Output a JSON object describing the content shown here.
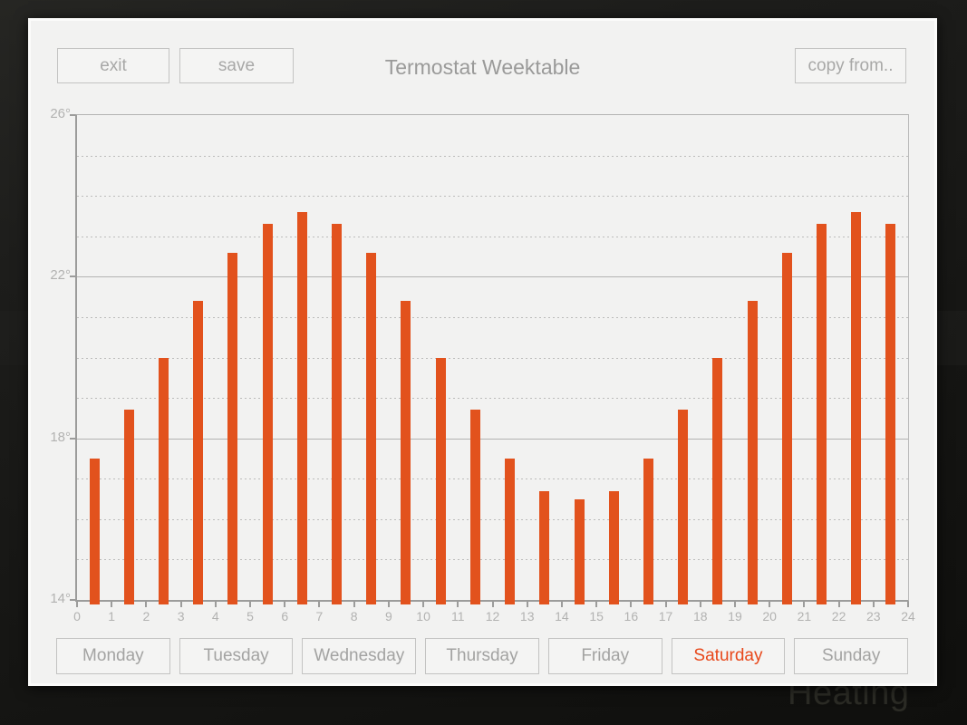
{
  "window": {
    "background_watermark": "Heating"
  },
  "header": {
    "title": "Termostat Weektable",
    "exit_label": "exit",
    "save_label": "save",
    "copy_from_label": "copy from.."
  },
  "days": {
    "selected": "Saturday",
    "items": [
      "Monday",
      "Tuesday",
      "Wednesday",
      "Thursday",
      "Friday",
      "Saturday",
      "Sunday"
    ]
  },
  "chart_data": {
    "type": "bar",
    "title": "Termostat Weektable",
    "xlabel": "",
    "ylabel": "",
    "unit": "°",
    "categories": [
      0,
      1,
      2,
      3,
      4,
      5,
      6,
      7,
      8,
      9,
      10,
      11,
      12,
      13,
      14,
      15,
      16,
      17,
      18,
      19,
      20,
      21,
      22,
      23
    ],
    "values": [
      17.5,
      18.7,
      20.0,
      21.4,
      22.6,
      23.3,
      23.6,
      23.3,
      22.6,
      21.4,
      20.0,
      18.7,
      17.5,
      16.7,
      16.5,
      16.7,
      17.5,
      18.7,
      20.0,
      21.4,
      22.6,
      23.3,
      23.6,
      23.3
    ],
    "ylim": [
      14,
      26
    ],
    "ytick_values": [
      14,
      18,
      22,
      26
    ],
    "ytick_labels": [
      "14°",
      "18°",
      "22°",
      "26°"
    ],
    "xtick_values": [
      0,
      1,
      2,
      3,
      4,
      5,
      6,
      7,
      8,
      9,
      10,
      11,
      12,
      13,
      14,
      15,
      16,
      17,
      18,
      19,
      20,
      21,
      22,
      23,
      24
    ],
    "grid": true,
    "minor_grid_step": 1,
    "legend": false,
    "bar_color": "#e2521d"
  },
  "colors": {
    "accent_orange": "#e2521d",
    "selected_day_text": "#e8481b",
    "panel_background": "#f2f2f1",
    "outer_background": "#171715",
    "gridline": "#b3b3b2",
    "label_gray": "#a8a8a7"
  }
}
